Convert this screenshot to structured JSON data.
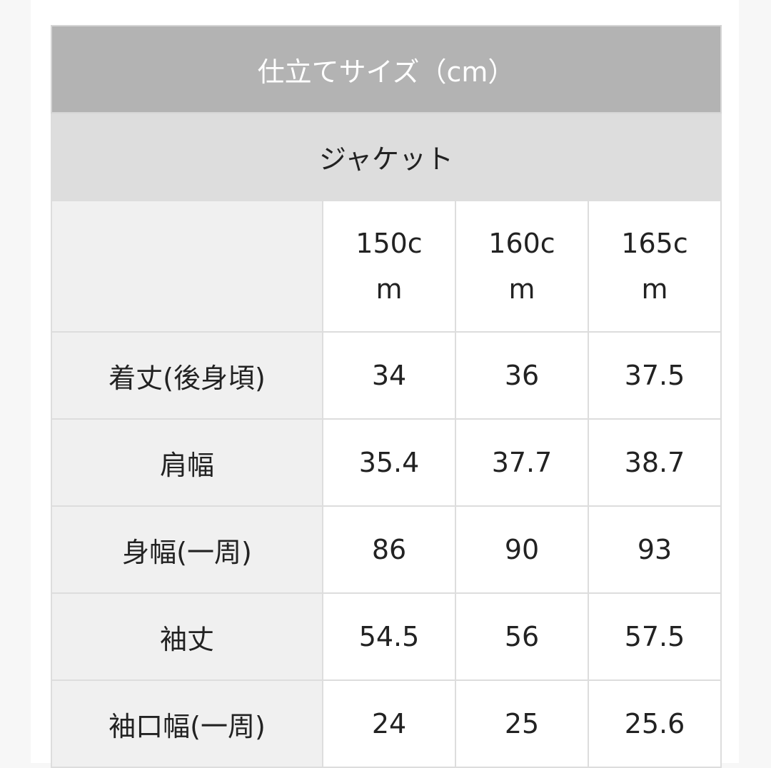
{
  "title": "仕立てサイズ（cm）",
  "subtitle": "ジャケット",
  "columns": [
    "150cm",
    "160cm",
    "165cm"
  ],
  "rows": [
    {
      "label": "着丈(後身頃)",
      "values": [
        "34",
        "36",
        "37.5"
      ]
    },
    {
      "label": "肩幅",
      "values": [
        "35.4",
        "37.7",
        "38.7"
      ]
    },
    {
      "label": "身幅(一周)",
      "values": [
        "86",
        "90",
        "93"
      ]
    },
    {
      "label": "袖丈",
      "values": [
        "54.5",
        "56",
        "57.5"
      ]
    },
    {
      "label": "袖口幅(一周)",
      "values": [
        "24",
        "25",
        "25.6"
      ]
    }
  ],
  "colors": {
    "title_bg": "#b3b3b3",
    "subtitle_bg": "#dddddd",
    "label_bg": "#f0f0f0"
  }
}
